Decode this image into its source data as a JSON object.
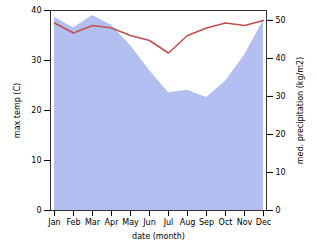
{
  "chart_data": {
    "type": "line",
    "xlabel": "date (month)",
    "ylabel": "max temp (C)",
    "y2label": "med. precipitation (kg/m2)",
    "categories": [
      "Jan",
      "Feb",
      "Mar",
      "Apr",
      "May",
      "Jun",
      "Jul",
      "Aug",
      "Sep",
      "Oct",
      "Nov",
      "Dec"
    ],
    "series": [
      {
        "name": "med. precipitation (kg/m2)",
        "type": "area",
        "axis": "y2",
        "color": "#b3bff0",
        "values": [
          50.8,
          48,
          51.3,
          48.7,
          43.4,
          36.8,
          31,
          31.6,
          29.7,
          34,
          40.8,
          50
        ]
      },
      {
        "name": "max temp (C)",
        "type": "line",
        "color": "#c0504d",
        "values": [
          37.5,
          35.5,
          37,
          36.5,
          35,
          34,
          31.5,
          35,
          36.5,
          37.5,
          37,
          38
        ]
      }
    ],
    "ylim": [
      0,
      40
    ],
    "yticks": [
      0,
      10,
      20,
      30,
      40
    ],
    "y2lim": [
      0,
      52.6
    ],
    "y2ticks": [
      0,
      10,
      20,
      30,
      40,
      50
    ],
    "grid": false
  }
}
